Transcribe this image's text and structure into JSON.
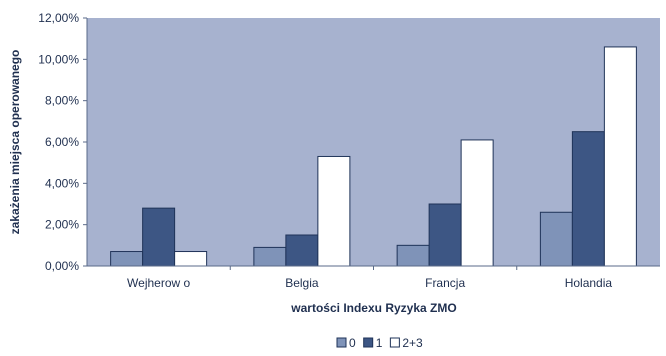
{
  "chart_data": {
    "type": "bar",
    "categories": [
      "Wejherow o",
      "Belgia",
      "Francja",
      "Holandia"
    ],
    "series": [
      {
        "name": "0",
        "values": [
          0.7,
          0.9,
          1.0,
          2.6
        ],
        "color": "#7f93b8"
      },
      {
        "name": "1",
        "values": [
          2.8,
          1.5,
          3.0,
          6.5
        ],
        "color": "#3d5684"
      },
      {
        "name": "2+3",
        "values": [
          0.7,
          5.3,
          6.1,
          10.6
        ],
        "color": "#ffffff"
      }
    ],
    "y_ticks": [
      "0,00%",
      "2,00%",
      "4,00%",
      "6,00%",
      "8,00%",
      "10,00%",
      "12,00%"
    ],
    "xlabel": "wartości Indexu Ryzyka ZMO",
    "ylabel": "zakażenia miejsca operowanego",
    "ylim": [
      0,
      12
    ],
    "grid": false,
    "legend_position": "bottom",
    "plot_background": "#a7b2cf",
    "bar_outline": "#1f3358"
  }
}
